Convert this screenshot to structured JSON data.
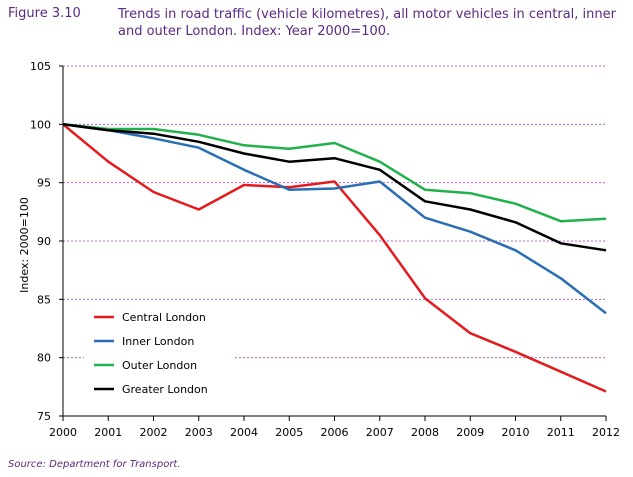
{
  "figure": {
    "label": "Figure 3.10",
    "title": "Trends in road traffic (vehicle kilometres), all motor vehicles in central, inner and outer London. Index: Year 2000=100.",
    "source": "Source: Department for Transport."
  },
  "chart_data": {
    "type": "line",
    "title": "Trends in road traffic (vehicle kilometres), all motor vehicles in central, inner and outer London. Index: Year 2000=100.",
    "xlabel": "",
    "ylabel": "Index: 2000=100",
    "x": [
      "2000",
      "2001",
      "2002",
      "2003",
      "2004",
      "2005",
      "2006",
      "2007",
      "2008",
      "2009",
      "2010",
      "2011",
      "2012"
    ],
    "yticks": [
      "75",
      "80",
      "85",
      "90",
      "95",
      "100",
      "105"
    ],
    "ylim": [
      75,
      105
    ],
    "grid": "horizontal dashed",
    "legend_position": "bottom-left",
    "series": [
      {
        "name": "Central London",
        "color": "#e41a1c",
        "values": [
          100,
          96.8,
          94.2,
          92.7,
          94.8,
          94.6,
          95.1,
          90.5,
          85.1,
          82.1,
          80.5,
          78.8,
          77.1
        ]
      },
      {
        "name": "Inner London",
        "color": "#2a6eb5",
        "values": [
          100,
          99.5,
          98.8,
          98.0,
          96.1,
          94.4,
          94.5,
          95.1,
          92.0,
          90.8,
          89.2,
          86.8,
          83.8
        ]
      },
      {
        "name": "Outer London",
        "color": "#22b14c",
        "values": [
          100,
          99.6,
          99.6,
          99.1,
          98.2,
          97.9,
          98.4,
          96.8,
          94.4,
          94.1,
          93.2,
          91.7,
          91.9
        ]
      },
      {
        "name": "Greater London",
        "color": "#000000",
        "values": [
          100,
          99.5,
          99.2,
          98.5,
          97.5,
          96.8,
          97.1,
          96.1,
          93.4,
          92.7,
          91.6,
          89.8,
          89.2
        ]
      }
    ]
  }
}
